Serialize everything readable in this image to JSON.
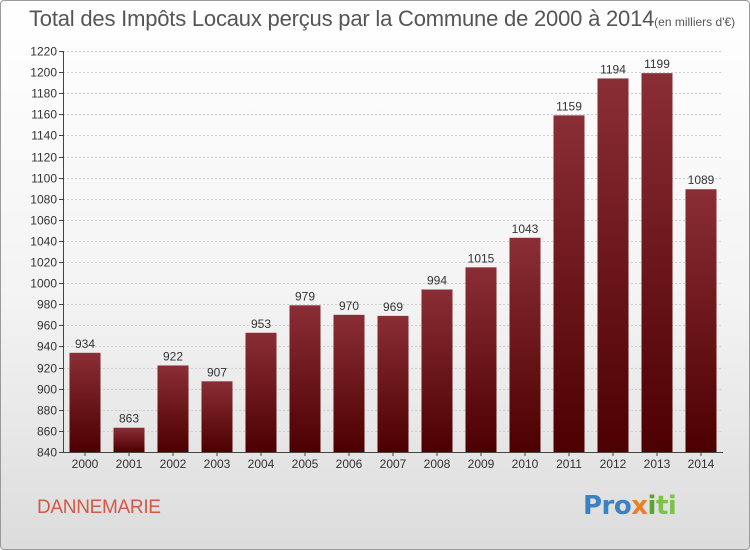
{
  "title": "Total des Impôts Locaux perçus par la Commune de 2000 à 2014",
  "title_unit": "(en milliers d'€)",
  "commune": "DANNEMARIE",
  "logo": {
    "p1": "Pro",
    "p2": "x",
    "p3": "i",
    "p4": "ti"
  },
  "colors": {
    "bar_top": "#8a2e35",
    "bar_bottom": "#4d0000",
    "commune": "#d05a45"
  },
  "chart_data": {
    "type": "bar",
    "categories": [
      "2000",
      "2001",
      "2002",
      "2003",
      "2004",
      "2005",
      "2006",
      "2007",
      "2008",
      "2009",
      "2010",
      "2011",
      "2012",
      "2013",
      "2014"
    ],
    "values": [
      934,
      863,
      922,
      907,
      953,
      979,
      970,
      969,
      994,
      1015,
      1043,
      1159,
      1194,
      1199,
      1089
    ],
    "ylim": [
      840,
      1220
    ],
    "yticks": [
      840,
      860,
      880,
      900,
      920,
      940,
      960,
      980,
      1000,
      1020,
      1040,
      1060,
      1080,
      1100,
      1120,
      1140,
      1160,
      1180,
      1200,
      1220
    ],
    "grid": true
  }
}
